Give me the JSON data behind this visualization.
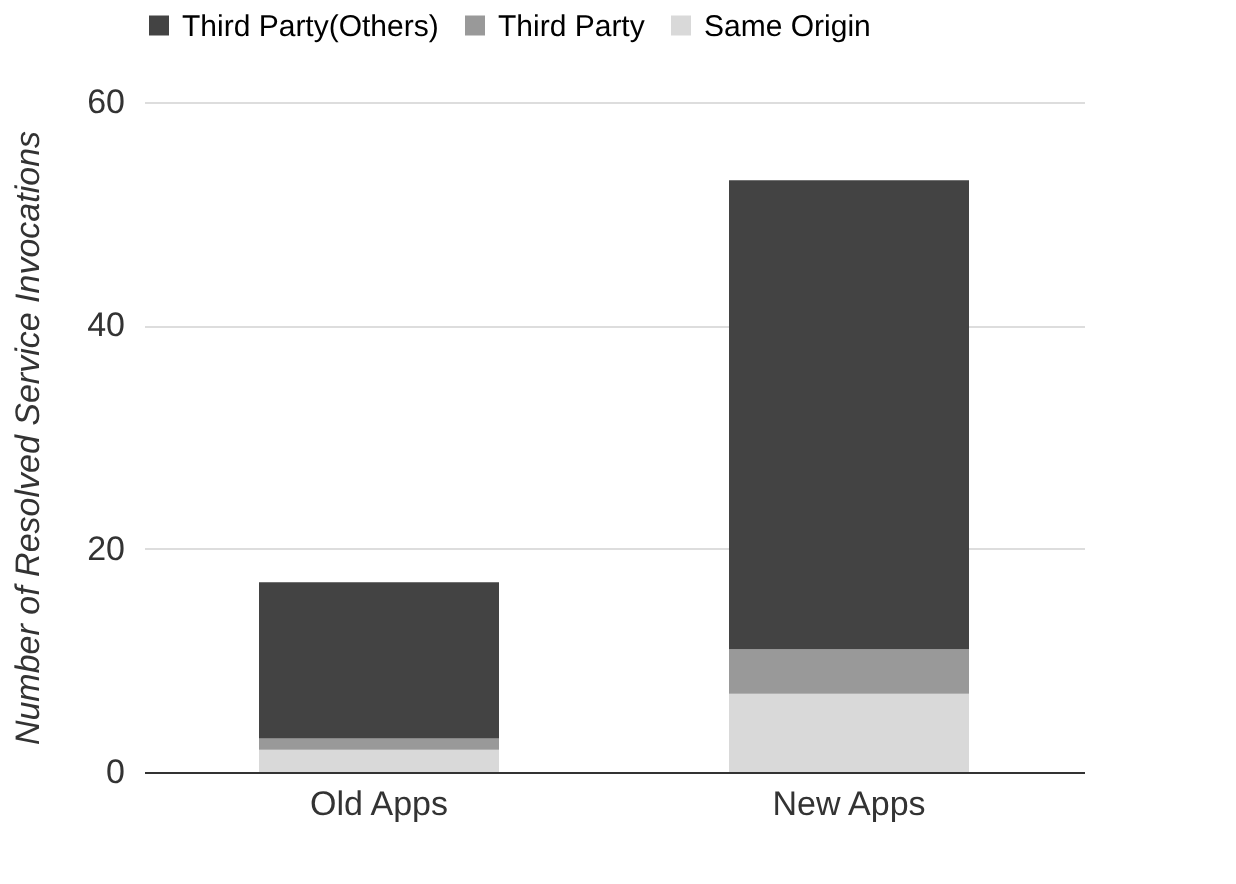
{
  "chart_data": {
    "type": "bar",
    "stacked": true,
    "ylabel": "Number of Resolved Service Invocations",
    "categories": [
      "Old Apps",
      "New Apps"
    ],
    "series": [
      {
        "name": "Same Origin",
        "color": "#d9d9d9",
        "values": [
          2,
          7
        ]
      },
      {
        "name": "Third Party",
        "color": "#999999",
        "values": [
          1,
          4
        ]
      },
      {
        "name": "Third Party(Others)",
        "color": "#434343",
        "values": [
          14,
          42
        ]
      }
    ],
    "ylim": [
      0,
      60
    ],
    "yticks": [
      0,
      20,
      40,
      60
    ],
    "grid": "y",
    "legend": "top"
  }
}
